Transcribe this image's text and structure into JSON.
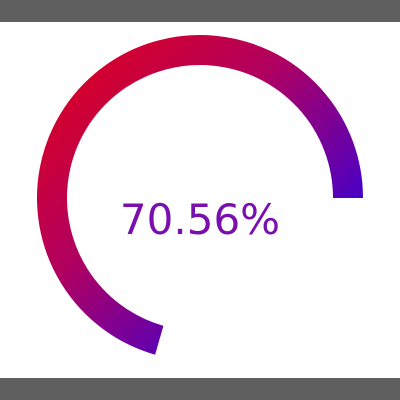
{
  "progress": {
    "value_text": "70.56%",
    "fraction": 0.7056,
    "colors": {
      "start": "#ff0000",
      "end": "#0000ff",
      "label": "#7a0fb0"
    }
  }
}
